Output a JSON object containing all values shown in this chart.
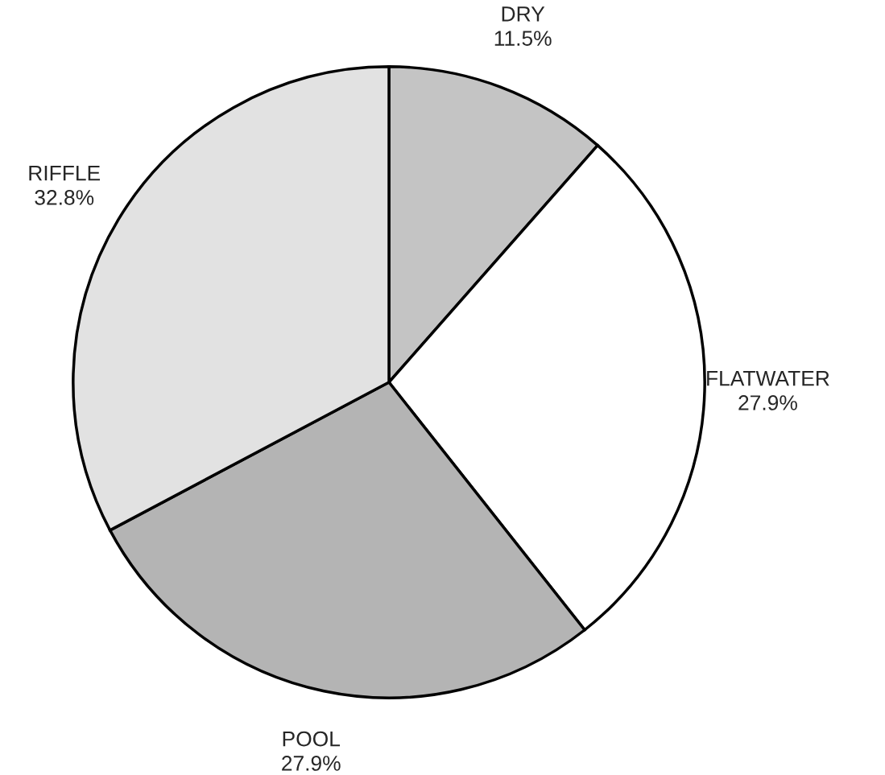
{
  "chart_data": {
    "type": "pie",
    "categories": [
      "DRY",
      "FLATWATER",
      "POOL",
      "RIFFLE"
    ],
    "values": [
      11.5,
      27.9,
      27.9,
      32.8
    ],
    "value_labels": [
      "11.5%",
      "27.9%",
      "27.9%",
      "32.8%"
    ],
    "colors": [
      "#c4c4c4",
      "#ffffff",
      "#b4b4b4",
      "#e2e2e2"
    ]
  }
}
